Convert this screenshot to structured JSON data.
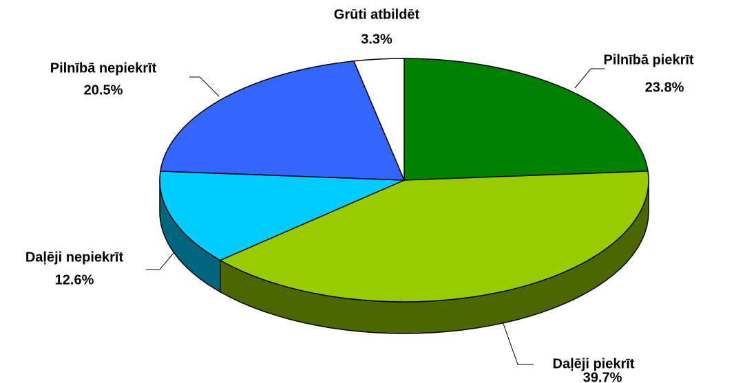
{
  "chart_data": {
    "type": "pie",
    "categories": [
      "Pilnībā piekrīt",
      "Daļēji piekrīt",
      "Daļēji nepiekrīt",
      "Pilnībā nepiekrīt",
      "Grūti atbildēt"
    ],
    "values": [
      23.8,
      39.7,
      12.6,
      20.5,
      3.3
    ],
    "value_labels": [
      "23.8%",
      "39.7%",
      "12.6%",
      "20.5%",
      "3.3%"
    ],
    "colors": [
      "#008000",
      "#99CC00",
      "#00CCFF",
      "#3366FF",
      "#FFFFFF"
    ]
  }
}
